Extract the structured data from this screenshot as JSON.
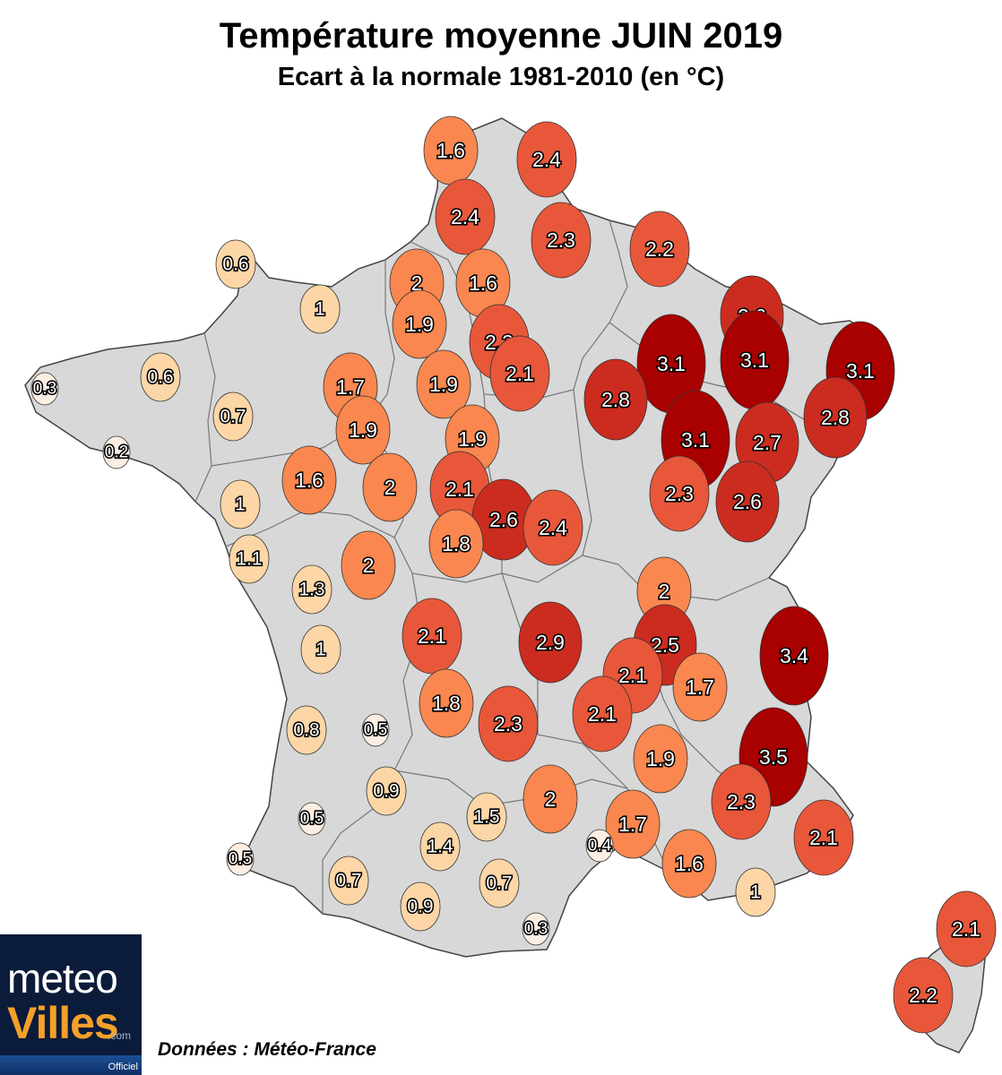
{
  "title": "Température moyenne JUIN 2019",
  "subtitle": "Ecart à la normale 1981-2010 (en °C)",
  "source": "Données : Météo-France",
  "logo": {
    "line1": "meteo",
    "line2": "Villes",
    "suffix": ".com",
    "badge": "Officiel"
  },
  "colors": {
    "land": "#d8d8d8",
    "border": "#777777",
    "bin_0": "#fdeee2",
    "bin_1": "#fcd6a6",
    "bin_2": "#f9874f",
    "bin_3": "#e8573a",
    "bin_4": "#cc2c1f",
    "bin_5": "#a90000"
  },
  "chart_data": {
    "type": "scatter",
    "title": "Température moyenne JUIN 2019",
    "subtitle": "Ecart à la normale 1981-2010 (en °C)",
    "stations": [
      {
        "value": "1.6"
      },
      {
        "value": "2.4"
      },
      {
        "value": "2.4"
      },
      {
        "value": "2.3"
      },
      {
        "value": "2.2"
      },
      {
        "value": "0.6"
      },
      {
        "value": "1"
      },
      {
        "value": "2"
      },
      {
        "value": "1.6"
      },
      {
        "value": "1.9"
      },
      {
        "value": "2.3"
      },
      {
        "value": "2.1"
      },
      {
        "value": "2.6"
      },
      {
        "value": "3.1"
      },
      {
        "value": "3.1"
      },
      {
        "value": "3.1"
      },
      {
        "value": "0.3"
      },
      {
        "value": "0.6"
      },
      {
        "value": "1.7"
      },
      {
        "value": "1.9"
      },
      {
        "value": "2.8"
      },
      {
        "value": "0.7"
      },
      {
        "value": "1.9"
      },
      {
        "value": "1.9"
      },
      {
        "value": "3.1"
      },
      {
        "value": "2.7"
      },
      {
        "value": "2.8"
      },
      {
        "value": "0.2"
      },
      {
        "value": "1.6"
      },
      {
        "value": "2"
      },
      {
        "value": "2.1"
      },
      {
        "value": "2.6"
      },
      {
        "value": "2.4"
      },
      {
        "value": "2.3"
      },
      {
        "value": "2.6"
      },
      {
        "value": "1"
      },
      {
        "value": "1.1"
      },
      {
        "value": "2"
      },
      {
        "value": "1.8"
      },
      {
        "value": "1.3"
      },
      {
        "value": "2"
      },
      {
        "value": "2.1"
      },
      {
        "value": "2.9"
      },
      {
        "value": "2.5"
      },
      {
        "value": "3.4"
      },
      {
        "value": "1"
      },
      {
        "value": "2.1"
      },
      {
        "value": "1.7"
      },
      {
        "value": "1.8"
      },
      {
        "value": "2.3"
      },
      {
        "value": "2.1"
      },
      {
        "value": "0.8"
      },
      {
        "value": "0.5"
      },
      {
        "value": "1.9"
      },
      {
        "value": "3.5"
      },
      {
        "value": "0.9"
      },
      {
        "value": "2"
      },
      {
        "value": "0.5"
      },
      {
        "value": "1.5"
      },
      {
        "value": "2.3"
      },
      {
        "value": "1.7"
      },
      {
        "value": "2.1"
      },
      {
        "value": "1.4"
      },
      {
        "value": "0.4"
      },
      {
        "value": "1.6"
      },
      {
        "value": "0.5"
      },
      {
        "value": "0.7"
      },
      {
        "value": "0.7"
      },
      {
        "value": "1"
      },
      {
        "value": "0.9"
      },
      {
        "value": "0.3"
      },
      {
        "value": "2.1"
      },
      {
        "value": "2.2"
      }
    ]
  }
}
